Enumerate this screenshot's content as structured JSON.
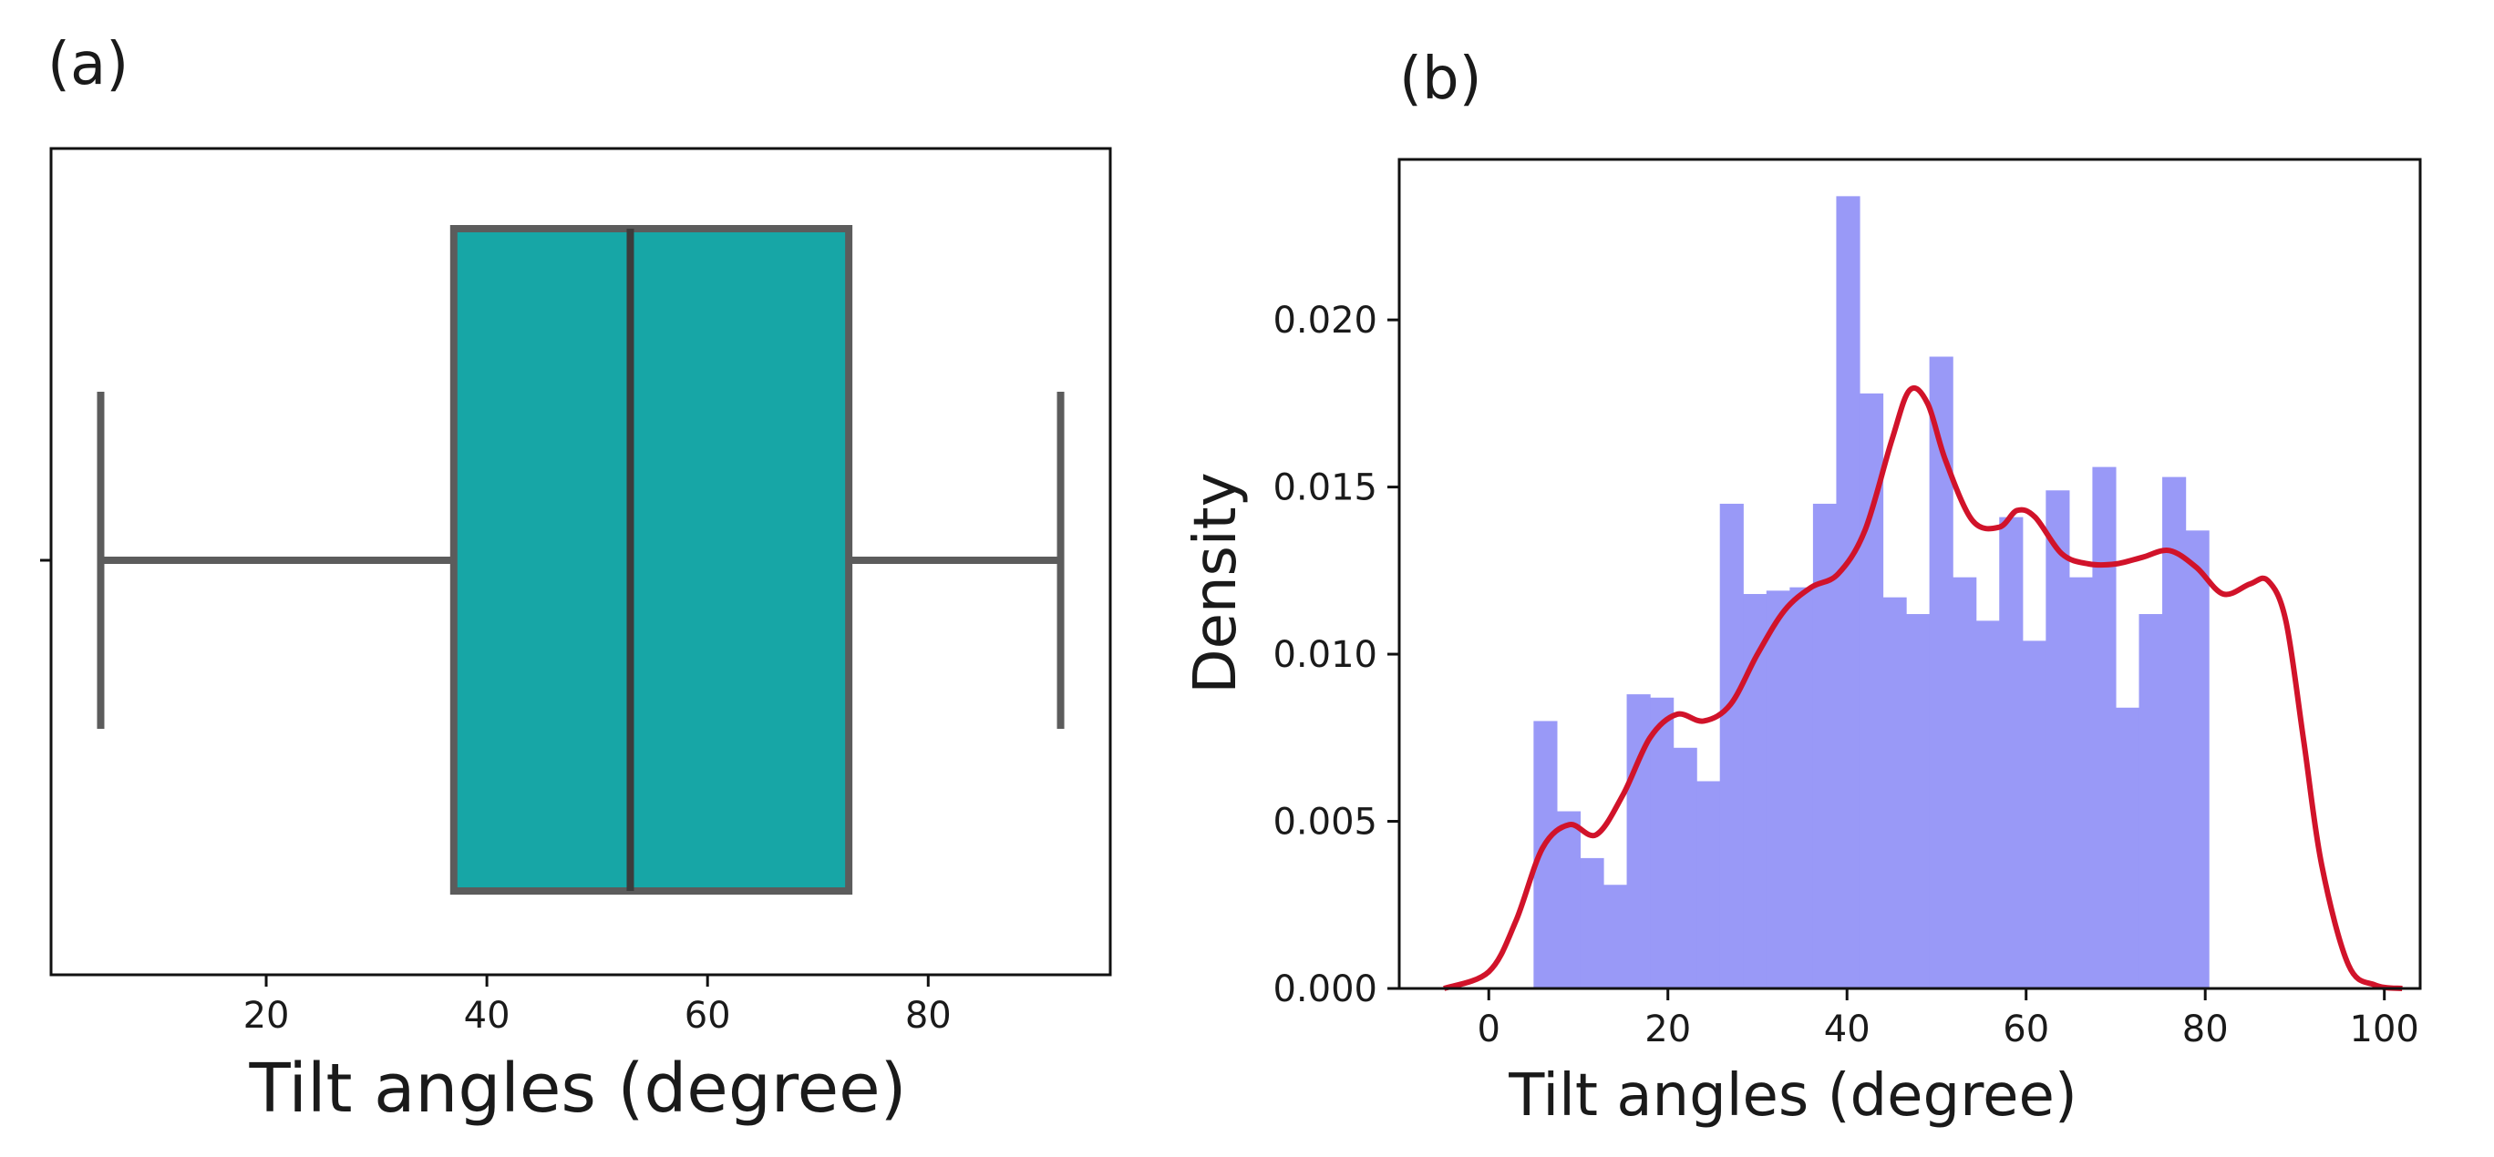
{
  "panels": {
    "a": {
      "label": "(a)"
    },
    "b": {
      "label": "(b)"
    }
  },
  "chart_data": [
    {
      "id": "a",
      "type": "box",
      "orientation": "horizontal",
      "title": "",
      "xlabel": "Tilt angles (degree)",
      "ylabel": "",
      "xlim": [
        0.5,
        96.5
      ],
      "xticks": [
        20,
        40,
        60,
        80
      ],
      "xtick_labels": [
        "20",
        "40",
        "60",
        "80"
      ],
      "box": {
        "whisker_low": 5,
        "q1": 37,
        "median": 53,
        "q3": 72.8,
        "whisker_high": 92
      },
      "box_color": "#17a6a6",
      "line_color": "#5c5c5c"
    },
    {
      "id": "b",
      "type": "histogram",
      "title": "",
      "xlabel": "Tilt angles (degree)",
      "ylabel": "Density",
      "xlim": [
        -10,
        104
      ],
      "ylim": [
        0,
        0.0248
      ],
      "xticks": [
        0,
        20,
        40,
        60,
        80,
        100
      ],
      "xtick_labels": [
        "0",
        "20",
        "40",
        "60",
        "80",
        "100"
      ],
      "yticks": [
        0,
        0.005,
        0.01,
        0.015,
        0.02
      ],
      "ytick_labels": [
        "0.000",
        "0.005",
        "0.010",
        "0.015",
        "0.020"
      ],
      "bins": {
        "start": 5,
        "width": 2.6,
        "values": [
          0.008,
          0.0053,
          0.0039,
          0.0031,
          0.0088,
          0.0087,
          0.0072,
          0.0062,
          0.0145,
          0.0118,
          0.0119,
          0.012,
          0.0145,
          0.0237,
          0.0178,
          0.0117,
          0.0112,
          0.0189,
          0.0123,
          0.011,
          0.0141,
          0.0104,
          0.0149,
          0.0123,
          0.0156,
          0.0084,
          0.0112,
          0.0153,
          0.0137
        ],
        "color": "#9999f7"
      },
      "kde": {
        "color": "#d1132a",
        "x": [
          -5,
          0,
          3,
          6,
          9,
          12,
          15,
          18,
          21,
          24,
          27,
          30,
          33,
          36,
          39,
          42,
          45,
          47,
          49,
          51,
          54,
          57,
          59,
          61,
          64,
          67,
          70,
          73,
          76,
          79,
          82,
          85,
          87,
          89,
          91,
          93,
          96,
          99,
          102
        ],
        "y": [
          0.0,
          0.0005,
          0.002,
          0.0042,
          0.0049,
          0.0046,
          0.0058,
          0.0075,
          0.0082,
          0.008,
          0.0085,
          0.01,
          0.0113,
          0.012,
          0.0124,
          0.0137,
          0.0164,
          0.0179,
          0.0175,
          0.0158,
          0.014,
          0.0138,
          0.0143,
          0.0141,
          0.013,
          0.0127,
          0.0127,
          0.0129,
          0.0131,
          0.0126,
          0.0118,
          0.0121,
          0.0122,
          0.011,
          0.0074,
          0.0037,
          0.0007,
          0.0001,
          0.0
        ]
      }
    }
  ]
}
